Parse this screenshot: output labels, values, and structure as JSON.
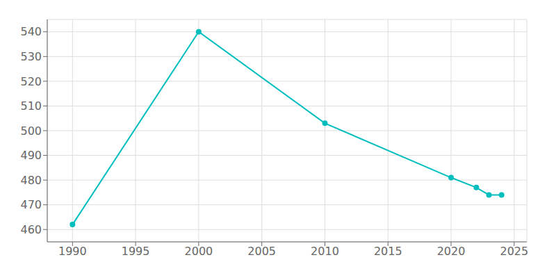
{
  "chart_data": {
    "type": "line",
    "x": [
      1990,
      2000,
      2010,
      2020,
      2022,
      2023,
      2024
    ],
    "values": [
      462,
      540,
      503,
      481,
      477,
      474,
      474
    ],
    "color": "#00BEBE",
    "marker": "circle",
    "xlim": [
      1988,
      2026
    ],
    "ylim": [
      455,
      545
    ],
    "xticks": [
      1990,
      1995,
      2000,
      2005,
      2010,
      2015,
      2020,
      2025
    ],
    "yticks": [
      460,
      470,
      480,
      490,
      500,
      510,
      520,
      530,
      540
    ],
    "grid": true
  }
}
